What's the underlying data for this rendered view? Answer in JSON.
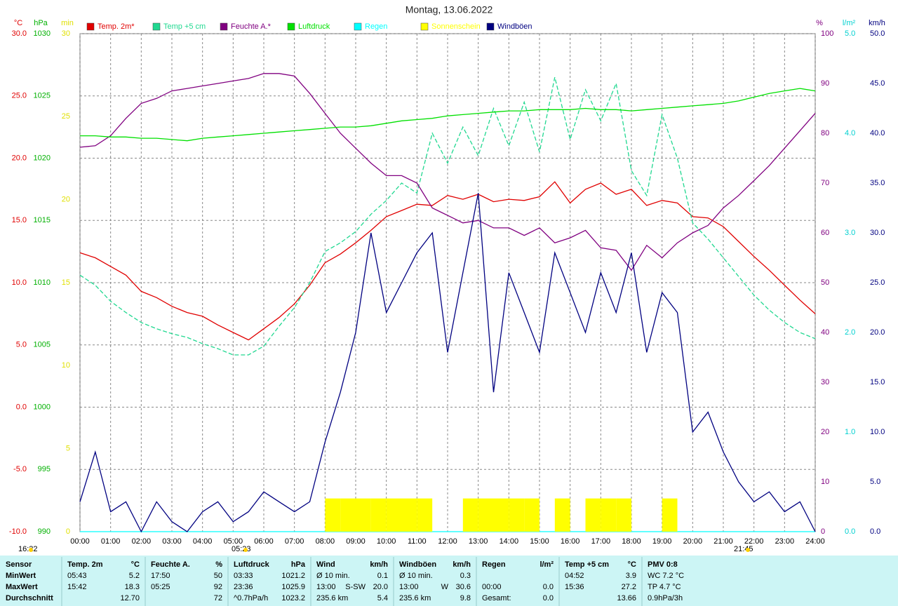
{
  "chart_data": {
    "type": "line",
    "title": "Montag, 13.06.2022",
    "x": [
      0,
      0.5,
      1,
      1.5,
      2,
      2.5,
      3,
      3.5,
      4,
      4.5,
      5,
      5.5,
      6,
      6.5,
      7,
      7.5,
      8,
      8.5,
      9,
      9.5,
      10,
      10.5,
      11,
      11.5,
      12,
      12.5,
      13,
      13.5,
      14,
      14.5,
      15,
      15.5,
      16,
      16.5,
      17,
      17.5,
      18,
      18.5,
      19,
      19.5,
      20,
      20.5,
      21,
      21.5,
      22,
      22.5,
      23,
      23.5,
      24
    ],
    "xlim": [
      0,
      24
    ],
    "xticks": [
      {
        "value": 0,
        "label": "00:00"
      },
      {
        "value": 1,
        "label": "01:00"
      },
      {
        "value": 2,
        "label": "02:00"
      },
      {
        "value": 3,
        "label": "03:00"
      },
      {
        "value": 4,
        "label": "04:00"
      },
      {
        "value": 5,
        "label": "05:00"
      },
      {
        "value": 6,
        "label": "06:00"
      },
      {
        "value": 7,
        "label": "07:00"
      },
      {
        "value": 8,
        "label": "08:00"
      },
      {
        "value": 9,
        "label": "09:00"
      },
      {
        "value": 10,
        "label": "10:00"
      },
      {
        "value": 11,
        "label": "11:00"
      },
      {
        "value": 12,
        "label": "12:00"
      },
      {
        "value": 13,
        "label": "13:00"
      },
      {
        "value": 14,
        "label": "14:00"
      },
      {
        "value": 15,
        "label": "15:00"
      },
      {
        "value": 16,
        "label": "16:00"
      },
      {
        "value": 17,
        "label": "17:00"
      },
      {
        "value": 18,
        "label": "18:00"
      },
      {
        "value": 19,
        "label": "19:00"
      },
      {
        "value": 20,
        "label": "20:00"
      },
      {
        "value": 21,
        "label": "21:00"
      },
      {
        "value": 22,
        "label": "22:00"
      },
      {
        "value": 23,
        "label": "23:00"
      },
      {
        "value": 24,
        "label": "24:00"
      }
    ],
    "grid": true,
    "axes": [
      {
        "label": "°C",
        "color": "#e00000",
        "lim": [
          -10,
          30
        ],
        "ticks": [
          {
            "value": 30,
            "label": "30.0"
          },
          {
            "value": 25,
            "label": "25.0"
          },
          {
            "value": 20,
            "label": "20.0"
          },
          {
            "value": 15,
            "label": "15.0"
          },
          {
            "value": 10,
            "label": "10.0"
          },
          {
            "value": 5,
            "label": "5.0"
          },
          {
            "value": 0,
            "label": "0.0"
          },
          {
            "value": -5,
            "label": "-5.0"
          },
          {
            "value": -10,
            "label": "-10.0"
          }
        ]
      },
      {
        "label": "hPa",
        "color": "#00b000",
        "lim": [
          990,
          1030
        ],
        "ticks": [
          1030,
          1025,
          1020,
          1015,
          1010,
          1005,
          1000,
          995,
          990
        ]
      },
      {
        "label": "min",
        "color": "#e0e000",
        "lim": [
          0,
          30
        ],
        "ticks": [
          30,
          25,
          20,
          15,
          10,
          5,
          0
        ]
      },
      {
        "label": "%",
        "color": "#800080",
        "lim": [
          0,
          100
        ],
        "ticks": [
          100,
          90,
          80,
          70,
          60,
          50,
          40,
          30,
          20,
          10,
          0
        ]
      },
      {
        "label": "l/m²",
        "color": "#00d0d0",
        "lim": [
          0,
          5
        ],
        "ticks": [
          {
            "value": 5,
            "label": "5.0"
          },
          {
            "value": 4,
            "label": "4.0"
          },
          {
            "value": 3,
            "label": "3.0"
          },
          {
            "value": 2,
            "label": "2.0"
          },
          {
            "value": 1,
            "label": "1.0"
          },
          {
            "value": 0,
            "label": "0.0"
          }
        ]
      },
      {
        "label": "km/h",
        "color": "#000080",
        "lim": [
          0,
          50
        ],
        "ticks": [
          {
            "value": 50,
            "label": "50.0"
          },
          {
            "value": 45,
            "label": "45.0"
          },
          {
            "value": 40,
            "label": "40.0"
          },
          {
            "value": 35,
            "label": "35.0"
          },
          {
            "value": 30,
            "label": "30.0"
          },
          {
            "value": 25,
            "label": "25.0"
          },
          {
            "value": 20,
            "label": "20.0"
          },
          {
            "value": 15,
            "label": "15.0"
          },
          {
            "value": 10,
            "label": "10.0"
          },
          {
            "value": 5,
            "label": "5.0"
          },
          {
            "value": 0,
            "label": "0.0"
          }
        ]
      }
    ],
    "series": [
      {
        "name": "Temp. 2m*",
        "color": "#e00000",
        "axis": 0,
        "values": [
          12.4,
          12.0,
          11.3,
          10.6,
          9.3,
          8.8,
          8.1,
          7.6,
          7.3,
          6.6,
          6.0,
          5.4,
          6.3,
          7.2,
          8.3,
          9.8,
          11.6,
          12.3,
          13.2,
          14.2,
          15.3,
          15.8,
          16.3,
          16.2,
          17.0,
          16.7,
          17.1,
          16.5,
          16.7,
          16.6,
          16.9,
          18.1,
          16.4,
          17.5,
          18.0,
          17.1,
          17.5,
          16.2,
          16.6,
          16.4,
          15.3,
          15.2,
          14.5,
          13.3,
          12.1,
          11.0,
          9.8,
          8.6,
          7.5
        ]
      },
      {
        "name": "Temp +5 cm",
        "color": "#20d890",
        "axis": 0,
        "values": [
          10.6,
          9.8,
          8.5,
          7.6,
          6.8,
          6.3,
          5.9,
          5.6,
          5.1,
          4.7,
          4.2,
          4.2,
          4.9,
          6.5,
          8.0,
          10.0,
          12.5,
          13.2,
          14.1,
          15.5,
          16.6,
          18.0,
          17.2,
          22.0,
          19.6,
          22.5,
          20.2,
          24.0,
          21.0,
          24.5,
          20.5,
          26.5,
          21.5,
          25.5,
          23.0,
          26.0,
          19.0,
          17.0,
          23.5,
          20.0,
          14.8,
          13.5,
          12.0,
          10.5,
          9.0,
          7.8,
          6.8,
          6.0,
          5.5
        ]
      },
      {
        "name": "Feuchte A.*",
        "color": "#800080",
        "axis": 3,
        "values": [
          77.2,
          77.5,
          79.5,
          83,
          86,
          87,
          88.5,
          89,
          89.5,
          90,
          90.5,
          91,
          92,
          92,
          91.5,
          88,
          84,
          80,
          77,
          74,
          71.5,
          71.5,
          70,
          65,
          63.5,
          62,
          62.5,
          61,
          61,
          59.5,
          61,
          58,
          59,
          60.5,
          57,
          56.5,
          52.5,
          57.5,
          55,
          58,
          60,
          61.5,
          65,
          67.5,
          70.5,
          73.5,
          77,
          80.5,
          84
        ]
      },
      {
        "name": "Luftdruck",
        "color": "#00e000",
        "axis": 1,
        "values": [
          1021.8,
          1021.8,
          1021.7,
          1021.7,
          1021.6,
          1021.6,
          1021.5,
          1021.4,
          1021.6,
          1021.7,
          1021.8,
          1021.9,
          1022.0,
          1022.1,
          1022.2,
          1022.3,
          1022.4,
          1022.5,
          1022.5,
          1022.6,
          1022.8,
          1023.0,
          1023.1,
          1023.2,
          1023.4,
          1023.5,
          1023.6,
          1023.7,
          1023.8,
          1023.8,
          1023.9,
          1023.9,
          1023.9,
          1024.0,
          1023.9,
          1023.9,
          1023.8,
          1023.9,
          1024.0,
          1024.1,
          1024.2,
          1024.3,
          1024.4,
          1024.6,
          1024.9,
          1025.2,
          1025.4,
          1025.6,
          1025.4
        ]
      },
      {
        "name": "Regen",
        "color": "#00ffff",
        "axis": 4,
        "values": [
          0,
          0,
          0,
          0,
          0,
          0,
          0,
          0,
          0,
          0,
          0,
          0,
          0,
          0,
          0,
          0,
          0,
          0,
          0,
          0,
          0,
          0,
          0,
          0,
          0,
          0,
          0,
          0,
          0,
          0,
          0,
          0,
          0,
          0,
          0,
          0,
          0,
          0,
          0,
          0,
          0,
          0,
          0,
          0,
          0,
          0,
          0,
          0,
          0
        ]
      },
      {
        "name": "Sonnenschein",
        "color": "#ffff00",
        "axis": 2,
        "bars": true,
        "values": [
          0,
          0,
          0,
          0,
          0,
          0,
          0,
          0,
          0,
          0,
          0,
          0,
          0,
          0,
          0,
          0,
          2,
          2,
          2,
          2,
          2,
          2,
          2,
          0,
          0,
          2,
          2,
          2,
          2,
          2,
          0,
          2,
          0,
          2,
          2,
          2,
          0,
          0,
          2,
          0,
          0,
          0,
          0,
          0,
          0,
          0,
          0,
          0,
          0
        ]
      },
      {
        "name": "Windböen",
        "color": "#000080",
        "axis": 5,
        "values": [
          3,
          8,
          2,
          3,
          0,
          3,
          1,
          0,
          2,
          3,
          1,
          2,
          4,
          3,
          2,
          3,
          9,
          14,
          20,
          30,
          22,
          25,
          28,
          30,
          18,
          26,
          34,
          14,
          26,
          22,
          18,
          28,
          24,
          20,
          26,
          22,
          28,
          18,
          24,
          22,
          10,
          12,
          8,
          5,
          3,
          4,
          2,
          3,
          0
        ]
      }
    ],
    "annotations": [
      "16:22",
      "05:23",
      "21:45"
    ]
  },
  "table": {
    "groups": [
      {
        "header": [
          "Sensor"
        ],
        "rows": [
          [
            "MinWert"
          ],
          [
            "MaxWert"
          ],
          [
            "Durchschnitt"
          ]
        ]
      },
      {
        "header": [
          "Temp. 2m",
          "°C"
        ],
        "rows": [
          [
            "05:43",
            "5.2"
          ],
          [
            "15:42",
            "18.3"
          ],
          [
            "12.70"
          ]
        ]
      },
      {
        "header": [
          "Feuchte A.",
          "%"
        ],
        "rows": [
          [
            "17:50",
            "50"
          ],
          [
            "05:25",
            "92"
          ],
          [
            "72"
          ]
        ]
      },
      {
        "header": [
          "Luftdruck",
          "hPa"
        ],
        "rows": [
          [
            "03:33",
            "1021.2"
          ],
          [
            "23:36",
            "1025.9"
          ],
          [
            "^0.7hPa/h",
            "1023.2"
          ]
        ]
      },
      {
        "header": [
          "Wind",
          "km/h"
        ],
        "rows": [
          [
            "Ø 10 min.",
            "0.1"
          ],
          [
            "13:00",
            "S-SW",
            "20.0"
          ],
          [
            "235.6 km",
            "5.4"
          ]
        ]
      },
      {
        "header": [
          "Windböen",
          "km/h"
        ],
        "rows": [
          [
            "Ø 10 min.",
            "0.3"
          ],
          [
            "13:00",
            "W",
            "30.6"
          ],
          [
            "235.6 km",
            "9.8"
          ]
        ]
      },
      {
        "header": [
          "Regen",
          "l/m²"
        ],
        "rows": [
          [],
          [
            "00:00",
            "0.0"
          ],
          [
            "Gesamt:",
            "0.0"
          ]
        ]
      },
      {
        "header": [
          "Temp +5 cm",
          "°C"
        ],
        "rows": [
          [
            "04:52",
            "3.9"
          ],
          [
            "15:36",
            "27.2"
          ],
          [
            "13.66"
          ]
        ]
      },
      {
        "header": [
          "PMV 0:8"
        ],
        "rows": [
          [
            "WC 7.2 °C"
          ],
          [
            "TP 4.7 °C"
          ],
          [
            "0.9hPa/3h"
          ]
        ]
      }
    ]
  }
}
